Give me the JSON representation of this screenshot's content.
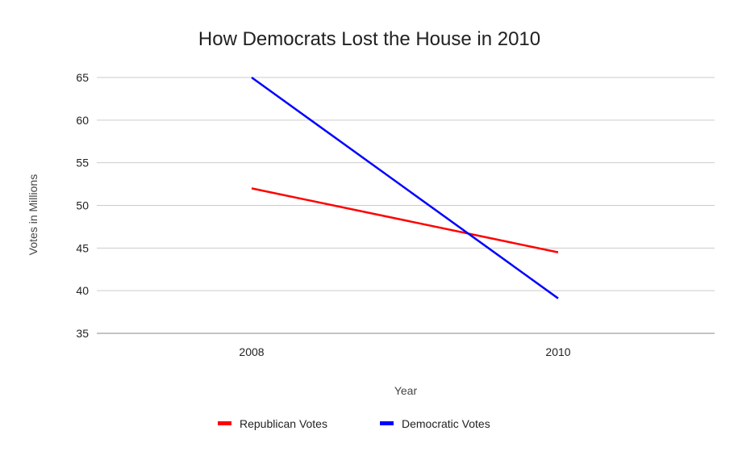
{
  "chart_data": {
    "type": "line",
    "title": "How Democrats Lost the House in 2010",
    "xlabel": "Year",
    "ylabel": "Votes in Millions",
    "categories": [
      "2008",
      "2010"
    ],
    "ylim": [
      35,
      65
    ],
    "yticks": [
      35,
      40,
      45,
      50,
      55,
      60,
      65
    ],
    "grid": true,
    "legend_position": "bottom",
    "series": [
      {
        "name": "Republican Votes",
        "color": "#ff0000",
        "values": [
          52.0,
          44.5
        ]
      },
      {
        "name": "Democratic Votes",
        "color": "#0000ff",
        "values": [
          65.0,
          39.1
        ]
      }
    ]
  }
}
